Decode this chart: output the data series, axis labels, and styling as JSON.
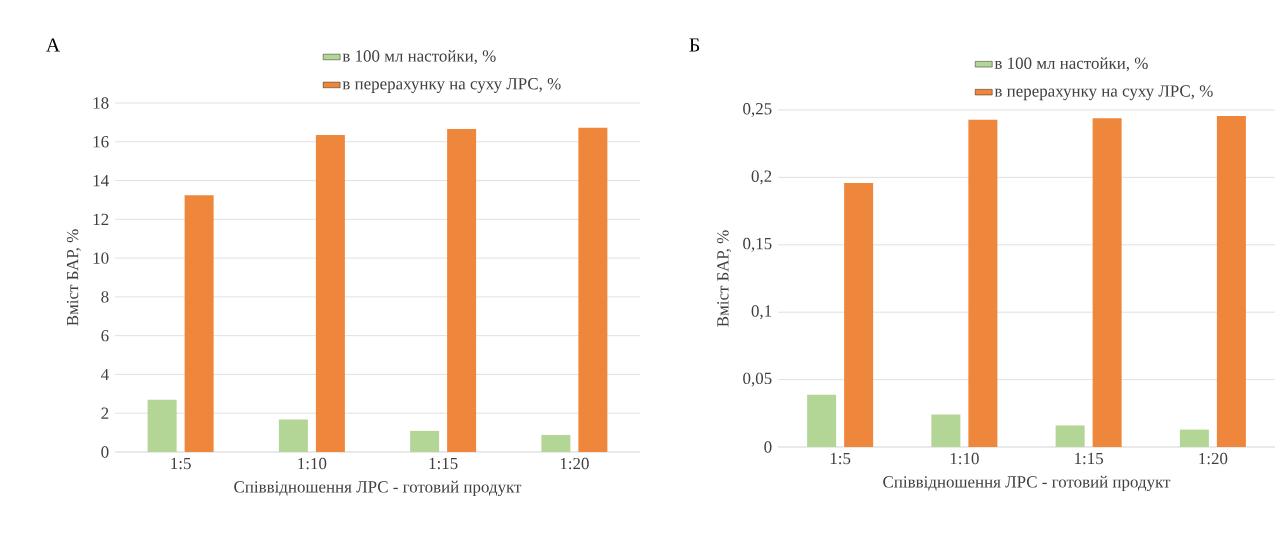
{
  "chart_data": [
    {
      "type": "bar",
      "title": "А",
      "xlabel": "Співвідношення ЛРС - готовий продукт",
      "ylabel": "Вміст БАР, %",
      "categories": [
        "1:5",
        "1:10",
        "1:15",
        "1:20"
      ],
      "series": [
        {
          "name": "в 100 мл настойки, %",
          "color": "#b3d596",
          "values": [
            2.69,
            1.68,
            1.09,
            0.88
          ]
        },
        {
          "name": "в перерахунку на суху ЛРС, %",
          "color": "#ee863b",
          "values": [
            13.24,
            16.35,
            16.66,
            16.72
          ]
        }
      ],
      "ylim": [
        0,
        18
      ],
      "yticks": [
        0,
        2,
        4,
        6,
        8,
        10,
        12,
        14,
        16,
        18
      ],
      "grid": "y",
      "legend": "top"
    },
    {
      "type": "bar",
      "title": "Б",
      "xlabel": "Співвідношення ЛРС - готовий продукт",
      "ylabel": "Вміст БАР, %",
      "categories": [
        "1:5",
        "1:10",
        "1:15",
        "1:20"
      ],
      "series": [
        {
          "name": "в 100 мл настойки, %",
          "color": "#b3d596",
          "values": [
            0.0388,
            0.0242,
            0.016,
            0.0129
          ]
        },
        {
          "name": "в перерахунку на суху ЛРС, %",
          "color": "#ee863b",
          "values": [
            0.1958,
            0.2428,
            0.2439,
            0.2456
          ]
        }
      ],
      "ylim": [
        0,
        0.25
      ],
      "yticks": [
        0,
        {
          "value": 0.05,
          "label": "0,05"
        },
        {
          "value": 0.1,
          "label": "0,1"
        },
        {
          "value": 0.15,
          "label": "0,15"
        },
        {
          "value": 0.2,
          "label": "0,2"
        },
        {
          "value": 0.25,
          "label": "0,25"
        }
      ],
      "grid": "y",
      "legend": "top"
    }
  ]
}
